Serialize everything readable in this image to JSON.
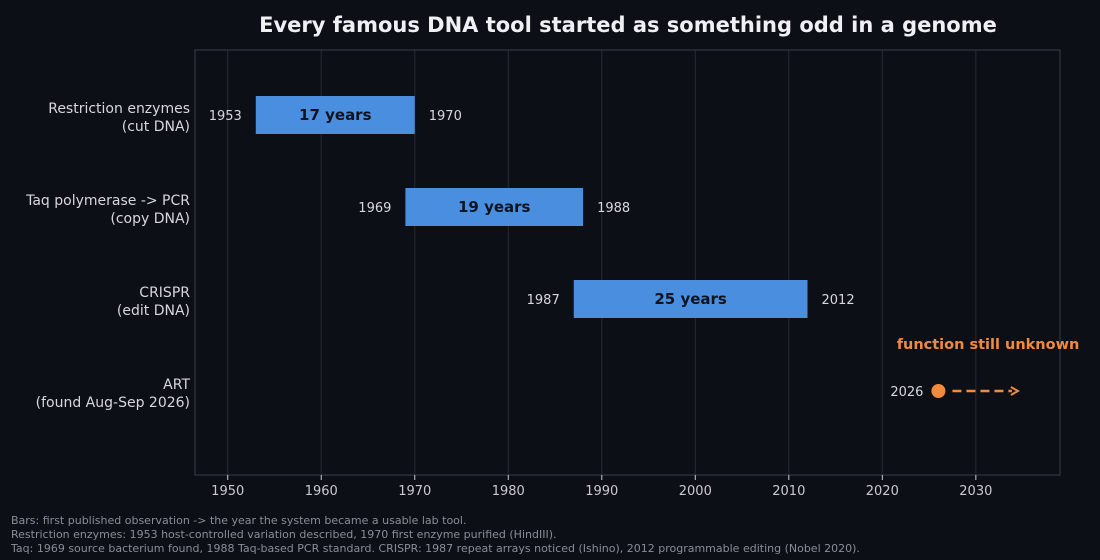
{
  "chart_data": {
    "type": "bar",
    "orientation": "horizontal-range",
    "title": "Every famous DNA tool started as something odd in a genome",
    "xlabel": "",
    "ylabel": "",
    "xlim": [
      1946.5,
      2039
    ],
    "xticks": [
      1950,
      1960,
      1970,
      1980,
      1990,
      2000,
      2010,
      2020,
      2030
    ],
    "grid": "vertical",
    "categories": [
      [
        "Restriction enzymes",
        "(cut DNA)"
      ],
      [
        "Taq polymerase -> PCR",
        "(copy DNA)"
      ],
      [
        "CRISPR",
        "(edit DNA)"
      ],
      [
        "ART",
        "(found Aug-Sep 2026)"
      ]
    ],
    "bars": [
      {
        "start": 1953,
        "end": 1970,
        "label": "17 years"
      },
      {
        "start": 1969,
        "end": 1988,
        "label": "19 years"
      },
      {
        "start": 1987,
        "end": 2012,
        "label": "25 years"
      }
    ],
    "open_item": {
      "start": 2026,
      "arrow_to": 2034.5,
      "annotation": "function still unknown"
    },
    "colors": {
      "background": "#0d0f16",
      "bar": "#4a8fdf",
      "bar_text": "#0d1420",
      "highlight": "#f28a3c",
      "grid": "#262a33",
      "frame": "#3a3e48",
      "text": "#d6d8de",
      "title": "#eef0f4",
      "tick": "#c8cad0"
    }
  },
  "footnotes": [
    "Bars: first published observation -> the year the system became a usable lab tool.",
    "Restriction enzymes: 1953 host-controlled variation described, 1970 first enzyme purified (HindIII).",
    "Taq: 1969 source bacterium found, 1988 Taq-based PCR standard. CRISPR: 1987 repeat arrays noticed (Ishino), 2012 programmable editing (Nobel 2020)."
  ]
}
